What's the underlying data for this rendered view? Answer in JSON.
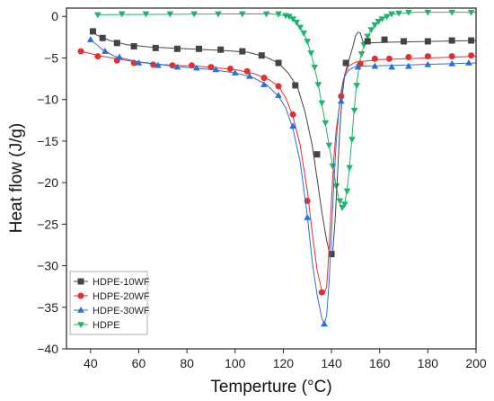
{
  "chart_data": {
    "type": "line",
    "xlabel": "Temperture (°C)",
    "ylabel": "Heat flow (J/g)",
    "xlim": [
      30,
      200
    ],
    "ylim": [
      -40,
      1
    ],
    "x_ticks": [
      40,
      60,
      80,
      100,
      120,
      140,
      160,
      180,
      200
    ],
    "y_ticks": [
      0,
      -5,
      -10,
      -15,
      -20,
      -25,
      -30,
      -35,
      -40
    ],
    "grid": false,
    "legend_position": "bottom-left",
    "series": [
      {
        "name": "HDPE-10WF",
        "color": "#444444",
        "marker": "square",
        "line": [
          [
            40,
            -1.8
          ],
          [
            43,
            -2.3
          ],
          [
            48,
            -2.9
          ],
          [
            55,
            -3.4
          ],
          [
            65,
            -3.7
          ],
          [
            80,
            -3.9
          ],
          [
            95,
            -4.1
          ],
          [
            105,
            -4.3
          ],
          [
            112,
            -4.8
          ],
          [
            118,
            -5.6
          ],
          [
            122,
            -6.8
          ],
          [
            126,
            -8.6
          ],
          [
            129,
            -11.5
          ],
          [
            132,
            -15.5
          ],
          [
            134,
            -19.5
          ],
          [
            136,
            -23.5
          ],
          [
            138,
            -27
          ],
          [
            139.5,
            -28.8
          ],
          [
            140.5,
            -28.4
          ],
          [
            141.5,
            -24.5
          ],
          [
            142.5,
            -19
          ],
          [
            143.5,
            -13.5
          ],
          [
            144.5,
            -9.5
          ],
          [
            145.5,
            -7
          ],
          [
            147,
            -5.5
          ],
          [
            149,
            -3.5
          ],
          [
            150,
            -2.3
          ],
          [
            151,
            -1.9
          ],
          [
            152,
            -2.0
          ],
          [
            153,
            -3.0
          ],
          [
            155,
            -3.2
          ],
          [
            165,
            -3.1
          ],
          [
            200,
            -2.9
          ]
        ],
        "markers": [
          [
            41,
            -1.8
          ],
          [
            45,
            -2.6
          ],
          [
            51,
            -3.2
          ],
          [
            58,
            -3.6
          ],
          [
            67,
            -3.8
          ],
          [
            76,
            -3.9
          ],
          [
            85,
            -3.9
          ],
          [
            94,
            -4.0
          ],
          [
            103,
            -4.2
          ],
          [
            111,
            -4.7
          ],
          [
            118,
            -5.6
          ],
          [
            125,
            -8.3
          ],
          [
            134,
            -16.6
          ],
          [
            140,
            -28.6
          ],
          [
            146,
            -5.6
          ],
          [
            155,
            -3.0
          ],
          [
            162,
            -2.8
          ],
          [
            170,
            -3.0
          ],
          [
            180,
            -3.0
          ],
          [
            190,
            -2.9
          ],
          [
            198,
            -2.9
          ]
        ]
      },
      {
        "name": "HDPE-20WF",
        "color": "#e03030",
        "marker": "circle",
        "line": [
          [
            36,
            -4.2
          ],
          [
            45,
            -4.8
          ],
          [
            55,
            -5.3
          ],
          [
            70,
            -5.8
          ],
          [
            85,
            -6.0
          ],
          [
            100,
            -6.4
          ],
          [
            108,
            -6.9
          ],
          [
            114,
            -7.6
          ],
          [
            118,
            -8.4
          ],
          [
            121,
            -9.8
          ],
          [
            124,
            -12
          ],
          [
            127,
            -15.5
          ],
          [
            130,
            -21
          ],
          [
            132,
            -26
          ],
          [
            134,
            -30.5
          ],
          [
            136,
            -33
          ],
          [
            137,
            -33.3
          ],
          [
            138,
            -32.5
          ],
          [
            139,
            -28
          ],
          [
            140,
            -22
          ],
          [
            141,
            -17
          ],
          [
            142,
            -13.5
          ],
          [
            143.5,
            -10.5
          ],
          [
            144.5,
            -8.5
          ],
          [
            145.5,
            -7
          ],
          [
            147,
            -6
          ],
          [
            150,
            -5.5
          ],
          [
            160,
            -5.2
          ],
          [
            180,
            -5.0
          ],
          [
            200,
            -4.8
          ]
        ],
        "markers": [
          [
            36,
            -4.2
          ],
          [
            43,
            -4.8
          ],
          [
            51,
            -5.3
          ],
          [
            58,
            -5.6
          ],
          [
            66,
            -5.8
          ],
          [
            74,
            -5.9
          ],
          [
            82,
            -5.9
          ],
          [
            90,
            -6.1
          ],
          [
            98,
            -6.3
          ],
          [
            105,
            -6.6
          ],
          [
            112,
            -7.4
          ],
          [
            118,
            -8.4
          ],
          [
            124,
            -11.8
          ],
          [
            130,
            -22.2
          ],
          [
            136,
            -33.2
          ],
          [
            144,
            -9.6
          ],
          [
            152,
            -5.7
          ],
          [
            158,
            -5.1
          ],
          [
            164,
            -5.1
          ],
          [
            172,
            -4.9
          ],
          [
            180,
            -4.8
          ],
          [
            190,
            -4.8
          ],
          [
            198,
            -4.7
          ]
        ]
      },
      {
        "name": "HDPE-30WF",
        "color": "#2a6fd6",
        "marker": "triangle-up",
        "line": [
          [
            40,
            -2.8
          ],
          [
            45,
            -4.0
          ],
          [
            50,
            -4.8
          ],
          [
            60,
            -5.5
          ],
          [
            75,
            -6.0
          ],
          [
            90,
            -6.4
          ],
          [
            100,
            -6.8
          ],
          [
            107,
            -7.3
          ],
          [
            113,
            -8.2
          ],
          [
            118,
            -9.6
          ],
          [
            121,
            -11
          ],
          [
            124,
            -13.5
          ],
          [
            127,
            -17.5
          ],
          [
            130,
            -24
          ],
          [
            132,
            -29.5
          ],
          [
            134,
            -33.5
          ],
          [
            136,
            -36.3
          ],
          [
            137,
            -37
          ],
          [
            138,
            -36
          ],
          [
            139,
            -32
          ],
          [
            140,
            -26
          ],
          [
            141,
            -20
          ],
          [
            142,
            -15
          ],
          [
            143,
            -11.5
          ],
          [
            144,
            -9
          ],
          [
            145,
            -7.5
          ],
          [
            147,
            -6.5
          ],
          [
            150,
            -6
          ],
          [
            165,
            -5.9
          ],
          [
            200,
            -5.6
          ]
        ],
        "markers": [
          [
            40,
            -2.8
          ],
          [
            46,
            -4.2
          ],
          [
            52,
            -4.9
          ],
          [
            60,
            -5.6
          ],
          [
            68,
            -5.9
          ],
          [
            76,
            -6.1
          ],
          [
            84,
            -6.2
          ],
          [
            92,
            -6.4
          ],
          [
            100,
            -6.8
          ],
          [
            106,
            -7.2
          ],
          [
            112,
            -8.2
          ],
          [
            118,
            -9.5
          ],
          [
            124,
            -13.2
          ],
          [
            130,
            -24.2
          ],
          [
            137,
            -37
          ],
          [
            144,
            -10.2
          ],
          [
            151,
            -6.1
          ],
          [
            158,
            -6.0
          ],
          [
            165,
            -6.1
          ],
          [
            172,
            -6.0
          ],
          [
            180,
            -5.8
          ],
          [
            190,
            -5.7
          ],
          [
            197,
            -5.6
          ]
        ]
      },
      {
        "name": "HDPE",
        "color": "#1fb36b",
        "marker": "triangle-down",
        "line": [
          [
            43,
            0.2
          ],
          [
            100,
            0.3
          ],
          [
            115,
            0.3
          ],
          [
            118,
            0.2
          ],
          [
            120,
            0.1
          ],
          [
            122,
            0
          ],
          [
            124,
            -0.3
          ],
          [
            126,
            -0.9
          ],
          [
            128,
            -1.8
          ],
          [
            130,
            -3
          ],
          [
            132,
            -5
          ],
          [
            134,
            -7.5
          ],
          [
            136,
            -10.5
          ],
          [
            138,
            -13.8
          ],
          [
            140,
            -17.2
          ],
          [
            142,
            -20.5
          ],
          [
            143.5,
            -22.5
          ],
          [
            144.5,
            -23
          ],
          [
            145.5,
            -22.5
          ],
          [
            146.5,
            -20.8
          ],
          [
            147.5,
            -18
          ],
          [
            148.5,
            -14.5
          ],
          [
            149.5,
            -11
          ],
          [
            150.5,
            -8
          ],
          [
            152,
            -5
          ],
          [
            154,
            -3
          ],
          [
            156,
            -1.8
          ],
          [
            158,
            -1
          ],
          [
            160,
            -0.5
          ],
          [
            163,
            0
          ],
          [
            166,
            0.3
          ],
          [
            175,
            0.5
          ],
          [
            200,
            0.5
          ]
        ],
        "markers": [
          [
            43,
            0.2
          ],
          [
            53,
            0.3
          ],
          [
            63,
            0.3
          ],
          [
            73,
            0.3
          ],
          [
            83,
            0.3
          ],
          [
            93,
            0.3
          ],
          [
            103,
            0.3
          ],
          [
            113,
            0.3
          ],
          [
            118,
            0.3
          ],
          [
            121,
            0.1
          ],
          [
            122.5,
            0
          ],
          [
            124,
            -0.3
          ],
          [
            125.5,
            -0.7
          ],
          [
            127,
            -1.3
          ],
          [
            128.5,
            -2
          ],
          [
            130,
            -3
          ],
          [
            131.5,
            -4.4
          ],
          [
            133,
            -6.1
          ],
          [
            134.5,
            -8.2
          ],
          [
            136,
            -10.4
          ],
          [
            137.5,
            -12.8
          ],
          [
            139,
            -15.5
          ],
          [
            140.5,
            -18
          ],
          [
            142,
            -20.4
          ],
          [
            143.5,
            -22.2
          ],
          [
            144.5,
            -23
          ],
          [
            145.5,
            -22.6
          ],
          [
            146.5,
            -21
          ],
          [
            147.5,
            -18.2
          ],
          [
            148.5,
            -14.8
          ],
          [
            149.5,
            -11.3
          ],
          [
            150.5,
            -8.3
          ],
          [
            151.5,
            -6
          ],
          [
            152.5,
            -4.5
          ],
          [
            153.5,
            -3.4
          ],
          [
            155,
            -2.4
          ],
          [
            156.5,
            -1.6
          ],
          [
            158,
            -1
          ],
          [
            159.5,
            -0.6
          ],
          [
            161,
            -0.3
          ],
          [
            163,
            0
          ],
          [
            165,
            0.3
          ],
          [
            168,
            0.4
          ],
          [
            172,
            0.5
          ],
          [
            180,
            0.5
          ],
          [
            190,
            0.5
          ],
          [
            198,
            0.5
          ]
        ]
      }
    ]
  }
}
